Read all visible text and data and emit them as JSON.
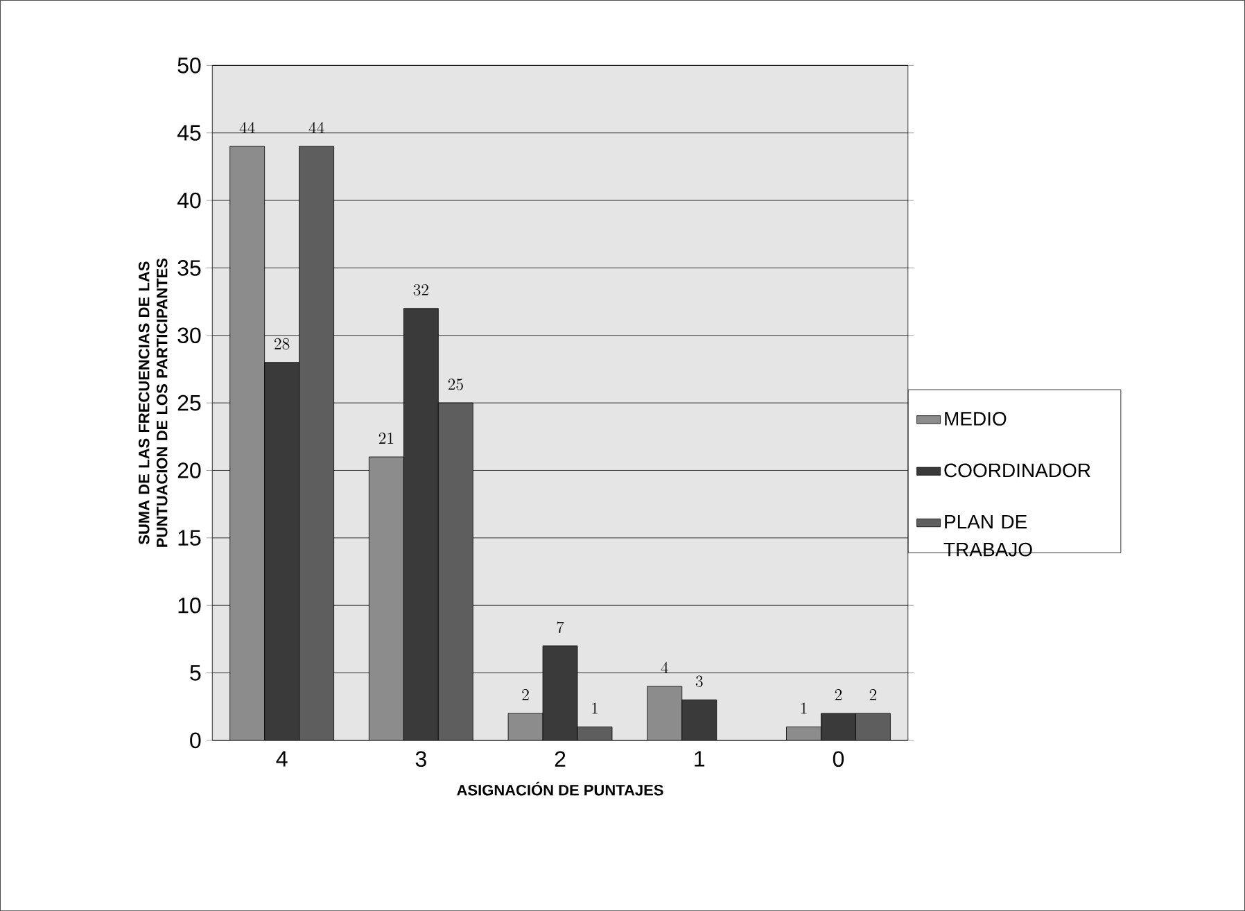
{
  "chart_data": {
    "type": "bar",
    "xlabel": "ASIGNACIÓN DE PUNTAJES",
    "ylabel": "SUMA DE LAS FRECUENCIAS DE LAS PUNTUACION DE LOS PARTICIPANTES",
    "categories": [
      "4",
      "3",
      "2",
      "1",
      "0"
    ],
    "series": [
      {
        "name": "MEDIO",
        "color": "#8c8c8c",
        "values": [
          44,
          21,
          2,
          4,
          1
        ]
      },
      {
        "name": "COORDINADOR",
        "color": "#3a3a3a",
        "values": [
          28,
          32,
          7,
          3,
          2
        ]
      },
      {
        "name": "PLAN DE TRABAJO",
        "color": "#5e5e5e",
        "values": [
          44,
          25,
          1,
          null,
          2
        ]
      }
    ],
    "ylim": [
      0,
      50
    ],
    "yticks": [
      0,
      5,
      10,
      15,
      20,
      25,
      30,
      35,
      40,
      45,
      50
    ],
    "grid": "y",
    "legend": "right",
    "data_labels": true
  }
}
